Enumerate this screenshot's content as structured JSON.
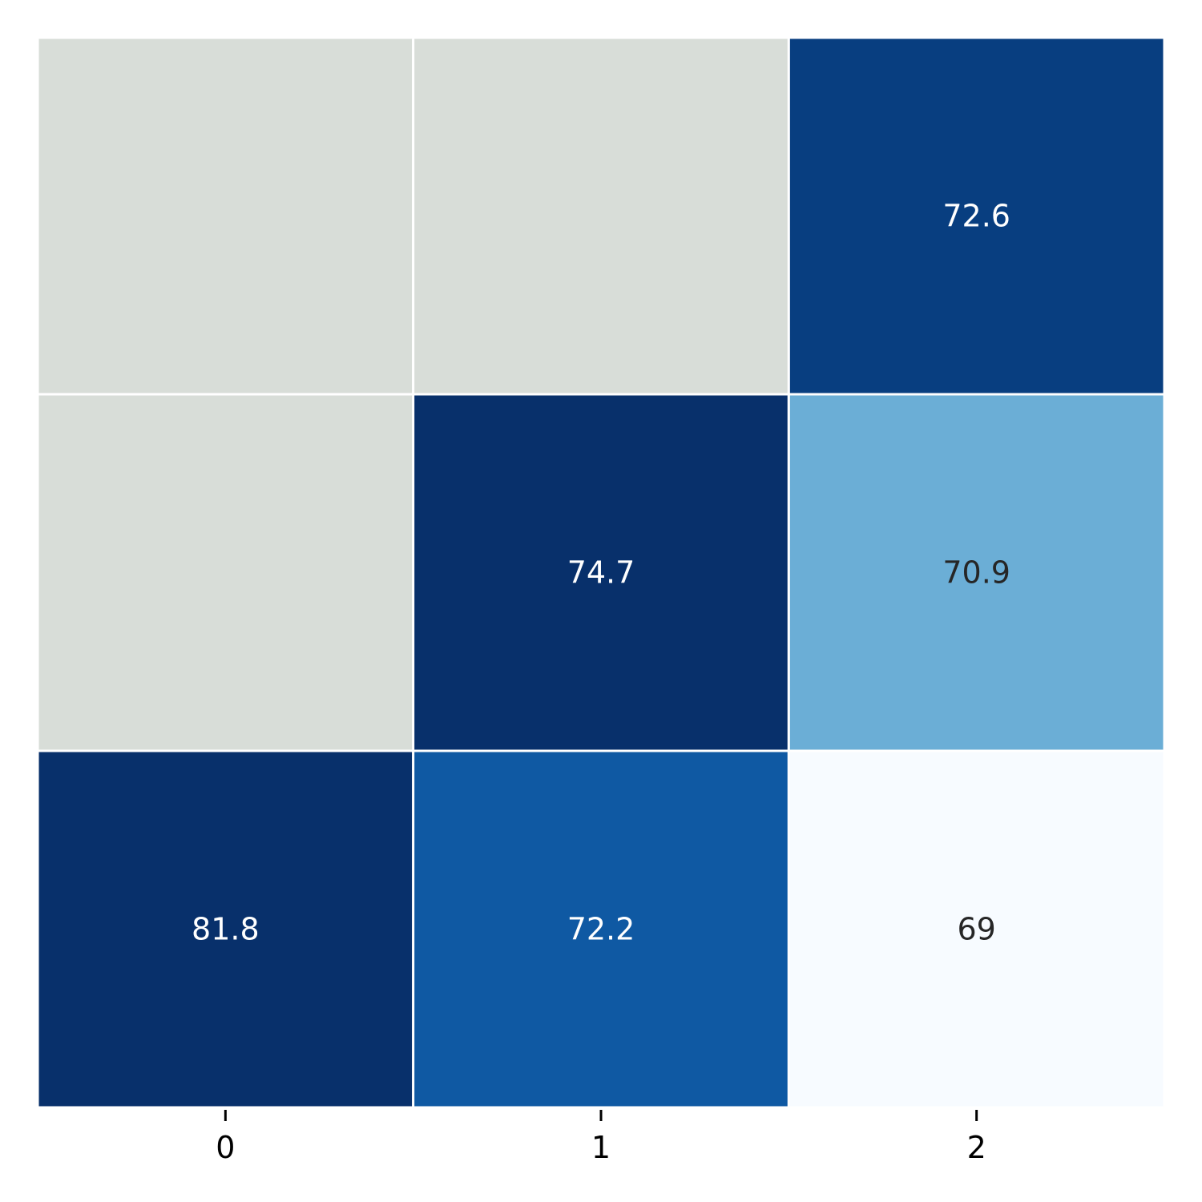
{
  "chart_data": {
    "type": "heatmap",
    "title": "",
    "xlabel": "",
    "ylabel": "",
    "x_tick_labels": [
      "0",
      "1",
      "2"
    ],
    "y_tick_labels": [],
    "cells": [
      [
        null,
        null,
        72.6
      ],
      [
        null,
        74.7,
        70.9
      ],
      [
        81.8,
        72.2,
        69
      ]
    ],
    "cell_labels": [
      [
        "",
        "",
        "72.6"
      ],
      [
        "",
        "74.7",
        "70.9"
      ],
      [
        "81.8",
        "72.2",
        "69"
      ]
    ],
    "colormap": "Blues",
    "color_range": [
      69,
      72.8
    ],
    "missing_color": "#d8ddd8",
    "grid_line_color": "#ffffff",
    "colorbar": false,
    "legend": "none"
  }
}
